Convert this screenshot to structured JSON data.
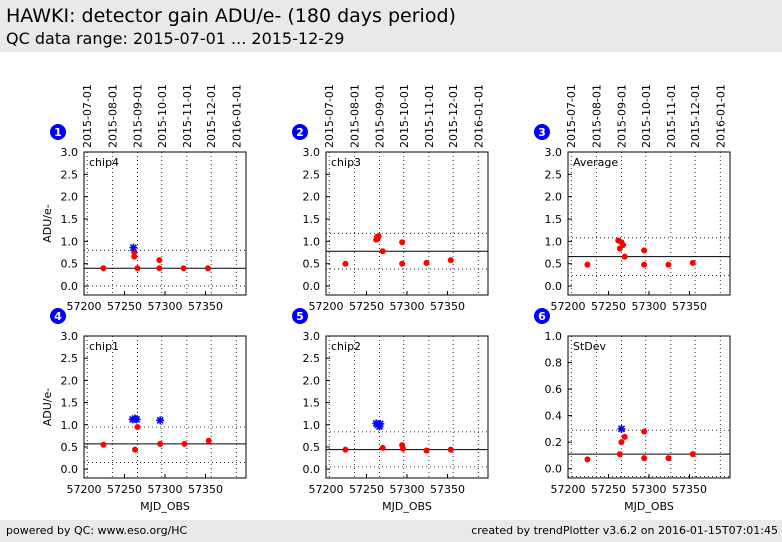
{
  "page": {
    "title": "HAWKI: detector gain ADU/e- (180 days period)",
    "subtitle": "QC data range: 2015-07-01 ... 2015-12-29",
    "footer_left": "powered by QC: www.eso.org/HC",
    "footer_right": "created by trendPlotter v3.6.2 on 2016-01-15T07:01:45"
  },
  "colors": {
    "marker_red": "#ff0000",
    "marker_blue": "#0000ff",
    "badge": "#0000ff",
    "header_bg": "#e9e9e9"
  },
  "chart_data": [
    {
      "type": "scatter",
      "index": "1",
      "label": "chip4",
      "ylabel": "ADU/e-",
      "xlabel": "",
      "xlim": [
        57200,
        57400
      ],
      "ylim": [
        -0.2,
        3.0
      ],
      "yticks": [
        "3.0",
        "2.5",
        "2.0",
        "1.5",
        "1.0",
        "0.5",
        "0.0"
      ],
      "ytick_values": [
        3.0,
        2.5,
        2.0,
        1.5,
        1.0,
        0.5,
        0.0
      ],
      "xticks": [
        "57200",
        "57250",
        "57300",
        "57350"
      ],
      "xtick_values": [
        57200,
        57250,
        57300,
        57350
      ],
      "top_ticks": [
        "2015-07-01",
        "2015-08-01",
        "2015-09-01",
        "2015-10-01",
        "2015-11-01",
        "2015-12-01",
        "2016-01-01"
      ],
      "top_tick_values": [
        57204,
        57235,
        57266,
        57296,
        57327,
        57357,
        57388
      ],
      "median": 0.4,
      "thresholds": [
        0.0,
        0.8
      ],
      "series": [
        {
          "marker": "circle",
          "color": "#ff0000",
          "x": [
            57224,
            57262,
            57262,
            57266,
            57293,
            57293,
            57323,
            57353
          ],
          "y": [
            0.4,
            0.76,
            0.66,
            0.4,
            0.58,
            0.4,
            0.4,
            0.4
          ]
        },
        {
          "marker": "star",
          "color": "#0000ff",
          "x": [
            57261
          ],
          "y": [
            0.86
          ]
        }
      ]
    },
    {
      "type": "scatter",
      "index": "2",
      "label": "chip3",
      "ylabel": "",
      "xlabel": "",
      "xlim": [
        57200,
        57400
      ],
      "ylim": [
        -0.2,
        3.0
      ],
      "yticks": [
        "3.0",
        "2.5",
        "2.0",
        "1.5",
        "1.0",
        "0.5",
        "0.0"
      ],
      "ytick_values": [
        3.0,
        2.5,
        2.0,
        1.5,
        1.0,
        0.5,
        0.0
      ],
      "xticks": [
        "57200",
        "57250",
        "57300",
        "57350"
      ],
      "xtick_values": [
        57200,
        57250,
        57300,
        57350
      ],
      "top_ticks": [
        "2015-07-01",
        "2015-08-01",
        "2015-09-01",
        "2015-10-01",
        "2015-11-01",
        "2015-12-01",
        "2016-01-01"
      ],
      "top_tick_values": [
        57204,
        57235,
        57266,
        57296,
        57327,
        57357,
        57388
      ],
      "median": 0.78,
      "thresholds": [
        0.38,
        1.18
      ],
      "series": [
        {
          "marker": "circle",
          "color": "#ff0000",
          "x": [
            57224,
            57262,
            57263,
            57264,
            57265,
            57270,
            57294,
            57294,
            57324,
            57354
          ],
          "y": [
            0.5,
            1.04,
            1.1,
            1.07,
            1.12,
            0.78,
            0.98,
            0.5,
            0.52,
            0.58
          ]
        }
      ]
    },
    {
      "type": "scatter",
      "index": "3",
      "label": "Average",
      "ylabel": "",
      "xlabel": "",
      "xlim": [
        57200,
        57400
      ],
      "ylim": [
        -0.2,
        3.0
      ],
      "yticks": [
        "3.0",
        "2.5",
        "2.0",
        "1.5",
        "1.0",
        "0.5",
        "0.0"
      ],
      "ytick_values": [
        3.0,
        2.5,
        2.0,
        1.5,
        1.0,
        0.5,
        0.0
      ],
      "xticks": [
        "57200",
        "57250",
        "57300",
        "57350"
      ],
      "xtick_values": [
        57200,
        57250,
        57300,
        57350
      ],
      "top_ticks": [
        "2015-07-01",
        "2015-08-01",
        "2015-09-01",
        "2015-10-01",
        "2015-11-01",
        "2015-12-01",
        "2016-01-01"
      ],
      "top_tick_values": [
        57204,
        57235,
        57266,
        57296,
        57327,
        57357,
        57388
      ],
      "median": 0.66,
      "thresholds": [
        0.24,
        1.08
      ],
      "series": [
        {
          "marker": "circle",
          "color": "#ff0000",
          "x": [
            57224,
            57262,
            57264,
            57266,
            57268,
            57270,
            57294,
            57294,
            57324,
            57354
          ],
          "y": [
            0.48,
            1.02,
            0.84,
            0.98,
            0.92,
            0.66,
            0.8,
            0.48,
            0.48,
            0.52
          ]
        }
      ]
    },
    {
      "type": "scatter",
      "index": "4",
      "label": "chip1",
      "ylabel": "ADU/e-",
      "xlabel": "MJD_OBS",
      "xlim": [
        57200,
        57400
      ],
      "ylim": [
        -0.2,
        3.0
      ],
      "yticks": [
        "3.0",
        "2.5",
        "2.0",
        "1.5",
        "1.0",
        "0.5",
        "0.0"
      ],
      "ytick_values": [
        3.0,
        2.5,
        2.0,
        1.5,
        1.0,
        0.5,
        0.0
      ],
      "xticks": [
        "57200",
        "57250",
        "57300",
        "57350"
      ],
      "xtick_values": [
        57200,
        57250,
        57300,
        57350
      ],
      "top_ticks": [],
      "top_tick_values": [
        57204,
        57235,
        57266,
        57296,
        57327,
        57357,
        57388
      ],
      "median": 0.57,
      "thresholds": [
        0.15,
        0.95
      ],
      "series": [
        {
          "marker": "circle",
          "color": "#ff0000",
          "x": [
            57224,
            57263,
            57266,
            57294,
            57324,
            57354
          ],
          "y": [
            0.55,
            0.44,
            0.95,
            0.57,
            0.57,
            0.64
          ]
        },
        {
          "marker": "star",
          "color": "#0000ff",
          "x": [
            57260,
            57263,
            57265,
            57294
          ],
          "y": [
            1.12,
            1.14,
            1.12,
            1.1
          ]
        }
      ]
    },
    {
      "type": "scatter",
      "index": "5",
      "label": "chip2",
      "ylabel": "",
      "xlabel": "MJD_OBS",
      "xlim": [
        57200,
        57400
      ],
      "ylim": [
        -0.2,
        3.0
      ],
      "yticks": [
        "3.0",
        "2.5",
        "2.0",
        "1.5",
        "1.0",
        "0.5",
        "0.0"
      ],
      "ytick_values": [
        3.0,
        2.5,
        2.0,
        1.5,
        1.0,
        0.5,
        0.0
      ],
      "xticks": [
        "57200",
        "57250",
        "57300",
        "57350"
      ],
      "xtick_values": [
        57200,
        57250,
        57300,
        57350
      ],
      "top_ticks": [],
      "top_tick_values": [
        57204,
        57235,
        57266,
        57296,
        57327,
        57357,
        57388
      ],
      "median": 0.44,
      "thresholds": [
        0.05,
        0.84
      ],
      "series": [
        {
          "marker": "circle",
          "color": "#ff0000",
          "x": [
            57224,
            57270,
            57294,
            57295,
            57324,
            57354
          ],
          "y": [
            0.44,
            0.48,
            0.54,
            0.46,
            0.42,
            0.44
          ]
        },
        {
          "marker": "star",
          "color": "#0000ff",
          "x": [
            57262,
            57264,
            57266,
            57267
          ],
          "y": [
            1.03,
            1.0,
            0.96,
            1.02
          ]
        }
      ]
    },
    {
      "type": "scatter",
      "index": "6",
      "label": "StDev",
      "ylabel": "",
      "xlabel": "MJD_OBS",
      "xlim": [
        57200,
        57400
      ],
      "ylim": [
        -0.07,
        1.0
      ],
      "yticks": [
        "1.0",
        "0.8",
        "0.6",
        "0.4",
        "0.2",
        "0.0"
      ],
      "ytick_values": [
        1.0,
        0.8,
        0.6,
        0.4,
        0.2,
        0.0
      ],
      "xticks": [
        "57200",
        "57250",
        "57300",
        "57350"
      ],
      "xtick_values": [
        57200,
        57250,
        57300,
        57350
      ],
      "top_ticks": [],
      "top_tick_values": [
        57204,
        57235,
        57266,
        57296,
        57327,
        57357,
        57388
      ],
      "median": 0.11,
      "thresholds": [
        -0.06,
        0.29
      ],
      "series": [
        {
          "marker": "circle",
          "color": "#ff0000",
          "x": [
            57224,
            57264,
            57266,
            57270,
            57294,
            57294,
            57324,
            57354
          ],
          "y": [
            0.07,
            0.11,
            0.2,
            0.24,
            0.28,
            0.08,
            0.08,
            0.11
          ]
        },
        {
          "marker": "star",
          "color": "#0000ff",
          "x": [
            57266
          ],
          "y": [
            0.3
          ]
        }
      ]
    }
  ]
}
